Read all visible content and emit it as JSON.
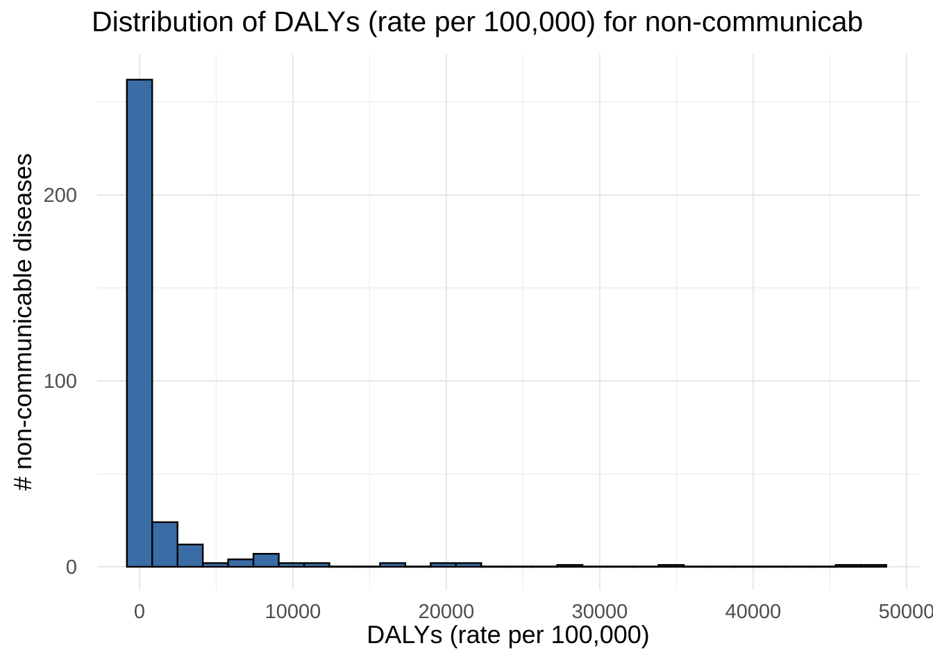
{
  "chart_data": {
    "type": "bar",
    "subtype": "histogram",
    "title": "Distribution of DALYs (rate per 100,000) for non-communicab",
    "xlabel": "DALYs (rate per 100,000)",
    "ylabel": "# non-communicable diseases",
    "x_ticks": [
      0,
      10000,
      20000,
      30000,
      40000,
      50000
    ],
    "x_tick_labels": [
      "0",
      "10000",
      "20000",
      "30000",
      "40000",
      "50000"
    ],
    "x_minor_ticks": [
      5000,
      15000,
      25000,
      35000,
      45000
    ],
    "y_ticks": [
      0,
      100,
      200
    ],
    "y_tick_labels": [
      "0",
      "100",
      "200"
    ],
    "y_minor_ticks": [
      50,
      150,
      250
    ],
    "xlim": [
      -3500,
      51500
    ],
    "ylim": [
      0,
      276
    ],
    "grid": true,
    "legend": "none",
    "bin_width": 1650,
    "bin_centers": [
      0,
      1650,
      3300,
      4950,
      6600,
      8250,
      9900,
      11550,
      13200,
      14850,
      16500,
      18150,
      19800,
      21450,
      23100,
      24750,
      26400,
      28050,
      29700,
      31350,
      33000,
      34650,
      36300,
      37950,
      39600,
      41250,
      42900,
      44550,
      46200,
      47850
    ],
    "counts": [
      262,
      24,
      12,
      2,
      4,
      7,
      2,
      2,
      0,
      0,
      2,
      0,
      2,
      2,
      0,
      0,
      0,
      1,
      0,
      0,
      0,
      1,
      0,
      0,
      0,
      0,
      0,
      0,
      1,
      1
    ],
    "colors": {
      "bar_fill": "#3a6ca6",
      "bar_stroke": "#000000",
      "grid_major": "#e8e8e8",
      "grid_minor": "#ededed",
      "tick_text": "#4d4d4d",
      "title_text": "#000000",
      "background": "#ffffff"
    }
  }
}
